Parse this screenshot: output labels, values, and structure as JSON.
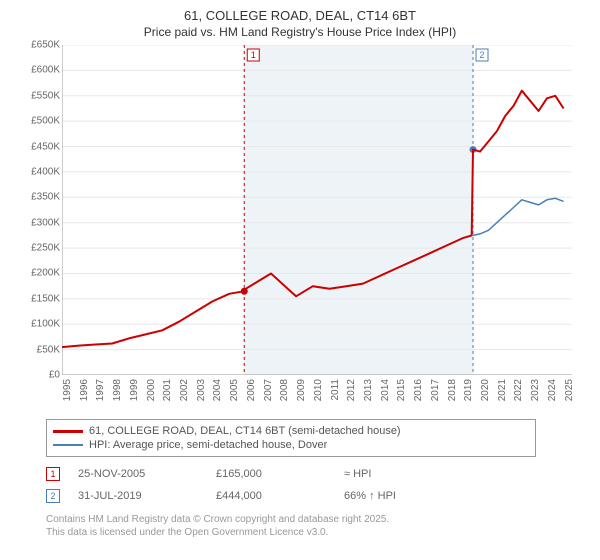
{
  "title": "61, COLLEGE ROAD, DEAL, CT14 6BT",
  "subtitle": "Price paid vs. HM Land Registry's House Price Index (HPI)",
  "chart": {
    "type": "line",
    "background_color": "#ffffff",
    "grid_color": "#e8e8e8",
    "axis_color": "#999999",
    "shaded_region": {
      "x_start_year": 2005.9,
      "x_end_year": 2019.58,
      "fill": "#eef3f8"
    },
    "x": {
      "min": 1995,
      "max": 2025.5,
      "ticks": [
        1995,
        1996,
        1997,
        1998,
        1999,
        2000,
        2001,
        2002,
        2003,
        2004,
        2005,
        2006,
        2007,
        2008,
        2009,
        2010,
        2011,
        2012,
        2013,
        2014,
        2015,
        2016,
        2017,
        2018,
        2019,
        2020,
        2021,
        2022,
        2023,
        2024,
        2025
      ],
      "tick_fontsize": 10,
      "tick_color": "#666666",
      "tick_rotation": -90
    },
    "y": {
      "min": 0,
      "max": 650000,
      "tick_step": 50000,
      "tick_labels": [
        "£0",
        "£50K",
        "£100K",
        "£150K",
        "£200K",
        "£250K",
        "£300K",
        "£350K",
        "£400K",
        "£450K",
        "£500K",
        "£550K",
        "£600K",
        "£650K"
      ],
      "tick_fontsize": 10,
      "tick_color": "#666666"
    },
    "series": [
      {
        "name": "61, COLLEGE ROAD, DEAL, CT14 6BT (semi-detached house)",
        "color": "#cc0000",
        "line_width": 2,
        "data": [
          [
            1995,
            55000
          ],
          [
            1996,
            58000
          ],
          [
            1997,
            60000
          ],
          [
            1998,
            62000
          ],
          [
            1999,
            72000
          ],
          [
            2000,
            80000
          ],
          [
            2001,
            88000
          ],
          [
            2002,
            105000
          ],
          [
            2003,
            125000
          ],
          [
            2004,
            145000
          ],
          [
            2005,
            160000
          ],
          [
            2005.9,
            165000
          ],
          [
            2006,
            170000
          ],
          [
            2007,
            190000
          ],
          [
            2007.5,
            200000
          ],
          [
            2008,
            185000
          ],
          [
            2008.5,
            170000
          ],
          [
            2009,
            155000
          ],
          [
            2009.5,
            165000
          ],
          [
            2010,
            175000
          ],
          [
            2011,
            170000
          ],
          [
            2012,
            175000
          ],
          [
            2013,
            180000
          ],
          [
            2014,
            195000
          ],
          [
            2015,
            210000
          ],
          [
            2016,
            225000
          ],
          [
            2017,
            240000
          ],
          [
            2018,
            255000
          ],
          [
            2019,
            270000
          ],
          [
            2019.5,
            275000
          ],
          [
            2019.58,
            444000
          ],
          [
            2020,
            440000
          ],
          [
            2020.5,
            460000
          ],
          [
            2021,
            480000
          ],
          [
            2021.5,
            510000
          ],
          [
            2022,
            530000
          ],
          [
            2022.5,
            560000
          ],
          [
            2023,
            540000
          ],
          [
            2023.5,
            520000
          ],
          [
            2024,
            545000
          ],
          [
            2024.5,
            550000
          ],
          [
            2025,
            525000
          ]
        ]
      },
      {
        "name": "HPI: Average price, semi-detached house, Dover",
        "color": "#4a7ebb",
        "line_width": 1.5,
        "data": [
          [
            2019.58,
            275000
          ],
          [
            2020,
            278000
          ],
          [
            2020.5,
            285000
          ],
          [
            2021,
            300000
          ],
          [
            2021.5,
            315000
          ],
          [
            2022,
            330000
          ],
          [
            2022.5,
            345000
          ],
          [
            2023,
            340000
          ],
          [
            2023.5,
            335000
          ],
          [
            2024,
            345000
          ],
          [
            2024.5,
            348000
          ],
          [
            2025,
            342000
          ]
        ]
      }
    ],
    "sale_markers": [
      {
        "n": 1,
        "year": 2005.9,
        "color": "#cc0000",
        "point_y": 165000
      },
      {
        "n": 2,
        "year": 2019.58,
        "color": "#4a7ebb",
        "point_y": 444000
      }
    ],
    "vline_dash": "3,3"
  },
  "legend": {
    "border_color": "#999999",
    "items": [
      {
        "label": "61, COLLEGE ROAD, DEAL, CT14 6BT (semi-detached house)",
        "color": "#cc0000",
        "width": 3
      },
      {
        "label": "HPI: Average price, semi-detached house, Dover",
        "color": "#4a7ebb",
        "width": 2
      }
    ]
  },
  "marker_table": [
    {
      "n": "1",
      "badge_color": "#cc0000",
      "date": "25-NOV-2005",
      "price": "£165,000",
      "delta": "≈ HPI"
    },
    {
      "n": "2",
      "badge_color": "#4a7ebb",
      "date": "31-JUL-2019",
      "price": "£444,000",
      "delta": "66% ↑ HPI"
    }
  ],
  "attribution": {
    "line1": "Contains HM Land Registry data © Crown copyright and database right 2025.",
    "line2": "This data is licensed under the Open Government Licence v3.0."
  }
}
